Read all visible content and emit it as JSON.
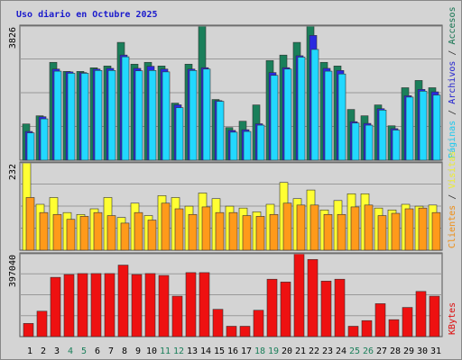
{
  "chart_data": {
    "type": "bar",
    "title": "Uso diario en Octubre 2025",
    "separator": " / ",
    "categories": [
      "1",
      "2",
      "3",
      "4",
      "5",
      "6",
      "7",
      "8",
      "9",
      "10",
      "11",
      "12",
      "13",
      "14",
      "15",
      "16",
      "17",
      "18",
      "19",
      "20",
      "21",
      "22",
      "23",
      "24",
      "25",
      "26",
      "27",
      "28",
      "29",
      "30",
      "31"
    ],
    "category_colors": [
      "#000000",
      "#000000",
      "#000000",
      "#1a7f5a",
      "#1a7f5a",
      "#000000",
      "#000000",
      "#000000",
      "#000000",
      "#000000",
      "#1a7f5a",
      "#1a7f5a",
      "#000000",
      "#000000",
      "#000000",
      "#000000",
      "#000000",
      "#1a7f5a",
      "#1a7f5a",
      "#000000",
      "#000000",
      "#000000",
      "#000000",
      "#000000",
      "#1a7f5a",
      "#1a7f5a",
      "#000000",
      "#000000",
      "#000000",
      "#000000",
      "#000000"
    ],
    "panels": [
      {
        "ylim": [
          0,
          3826
        ],
        "yticks": [
          3826
        ],
        "series": [
          {
            "name": "Accesos",
            "color": "#1a7f5a",
            "values": [
              1034,
              1267,
              2792,
              2533,
              2533,
              2637,
              2688,
              3361,
              2740,
              2792,
              2688,
              1629,
              2740,
              3826,
              1732,
              931,
              1112,
              1577,
              2844,
              2999,
              3361,
              3826,
              2792,
              2688,
              1448,
              1267,
              1577,
              982,
              2068,
              2275,
              2068
            ]
          },
          {
            "name": "Archivos",
            "color": "#2a2ae0",
            "values": [
              820,
              1240,
              2600,
              2520,
              2500,
              2600,
              2620,
              3000,
              2620,
              2680,
              2600,
              1580,
              2600,
              2640,
              1700,
              850,
              870,
              1040,
              2500,
              2640,
              2980,
              3560,
              2620,
              2560,
              1100,
              1050,
              1470,
              900,
              1840,
              2020,
              1950
            ]
          },
          {
            "name": "Páginas",
            "color": "#22d8ff",
            "values": [
              780,
              1180,
              2540,
              2480,
              2480,
              2560,
              2560,
              2950,
              2550,
              2560,
              2520,
              1500,
              2560,
              2600,
              1680,
              800,
              820,
              1000,
              2420,
              2600,
              2940,
              3160,
              2540,
              2460,
              1060,
              1000,
              1430,
              860,
              1800,
              1970,
              1860
            ]
          }
        ]
      },
      {
        "ylim": [
          0,
          232
        ],
        "yticks": [
          232
        ],
        "series": [
          {
            "name": "Visitas",
            "color": "#ffff33",
            "values": [
              232,
              122,
              140,
              100,
              95,
              110,
              140,
              87,
              125,
              92,
              145,
              140,
              117,
              152,
              137,
              117,
              112,
              102,
              122,
              180,
              137,
              160,
              107,
              132,
              150,
              150,
              112,
              107,
              122,
              117,
              120
            ]
          },
          {
            "name": "Clientes",
            "color": "#ff9a1a",
            "values": [
              140,
              100,
              95,
              82,
              90,
              100,
              92,
              72,
              100,
              80,
              125,
              110,
              95,
              115,
              100,
              100,
              92,
              90,
              95,
              125,
              120,
              120,
              95,
              95,
              115,
              120,
              92,
              98,
              110,
              112,
              100
            ]
          }
        ]
      },
      {
        "ylim": [
          0,
          397040
        ],
        "yticks": [
          397040
        ],
        "series": [
          {
            "name": "KBytes",
            "color": "#ee1111",
            "values": [
              63166,
              121817,
              284244,
              297780,
              302291,
              302291,
              302291,
              342898,
              297780,
              302291,
              293268,
              194008,
              306804,
              306804,
              130842,
              49630,
              49630,
              126331,
              275220,
              261686,
              397040,
              369969,
              266198,
              275220,
              49630,
              76701,
              157914,
              81212,
              139867,
              216567,
              194008
            ]
          }
        ]
      }
    ]
  }
}
